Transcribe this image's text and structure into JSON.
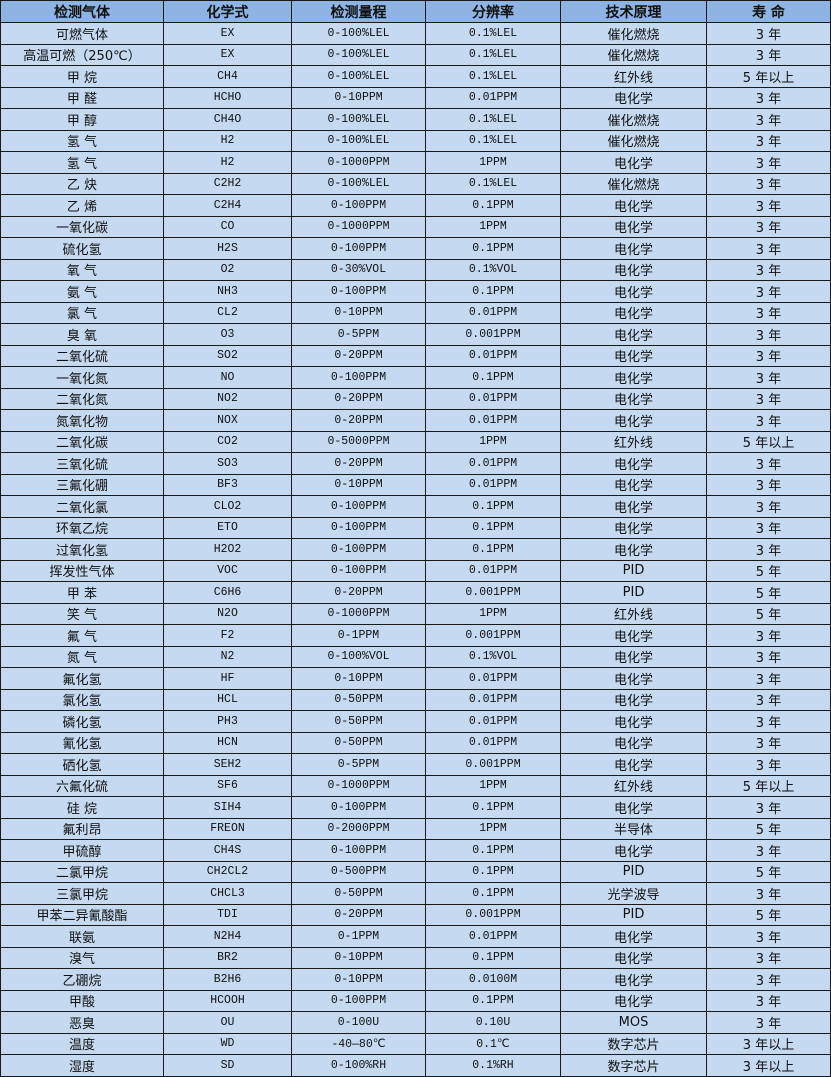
{
  "table": {
    "headers": [
      "检测气体",
      "化学式",
      "检测量程",
      "分辨率",
      "技术原理",
      "寿 命"
    ],
    "rows": [
      [
        "可燃气体",
        "EX",
        "0-100%LEL",
        "0.1%LEL",
        "催化燃烧",
        "3 年"
      ],
      [
        "高温可燃（250℃）",
        "EX",
        "0-100%LEL",
        "0.1%LEL",
        "催化燃烧",
        "3 年"
      ],
      [
        "甲 烷",
        "CH4",
        "0-100%LEL",
        "0.1%LEL",
        "红外线",
        "5 年以上"
      ],
      [
        "甲 醛",
        "HCHO",
        "0-10PPM",
        "0.01PPM",
        "电化学",
        "3 年"
      ],
      [
        "甲 醇",
        "CH4O",
        "0-100%LEL",
        "0.1%LEL",
        "催化燃烧",
        "3 年"
      ],
      [
        "氢 气",
        "H2",
        "0-100%LEL",
        "0.1%LEL",
        "催化燃烧",
        "3 年"
      ],
      [
        "氢 气",
        "H2",
        "0-1000PPM",
        "1PPM",
        "电化学",
        "3 年"
      ],
      [
        "乙 炔",
        "C2H2",
        "0-100%LEL",
        "0.1%LEL",
        "催化燃烧",
        "3 年"
      ],
      [
        "乙 烯",
        "C2H4",
        "0-100PPM",
        "0.1PPM",
        "电化学",
        "3 年"
      ],
      [
        "一氧化碳",
        "CO",
        "0-1000PPM",
        "1PPM",
        "电化学",
        "3 年"
      ],
      [
        "硫化氢",
        "H2S",
        "0-100PPM",
        "0.1PPM",
        "电化学",
        "3 年"
      ],
      [
        "氧 气",
        "O2",
        "0-30%VOL",
        "0.1%VOL",
        "电化学",
        "3 年"
      ],
      [
        "氨 气",
        "NH3",
        "0-100PPM",
        "0.1PPM",
        "电化学",
        "3 年"
      ],
      [
        "氯 气",
        "CL2",
        "0-10PPM",
        "0.01PPM",
        "电化学",
        "3 年"
      ],
      [
        "臭 氧",
        "O3",
        "0-5PPM",
        "0.001PPM",
        "电化学",
        "3 年"
      ],
      [
        "二氧化硫",
        "SO2",
        "0-20PPM",
        "0.01PPM",
        "电化学",
        "3 年"
      ],
      [
        "一氧化氮",
        "NO",
        "0-100PPM",
        "0.1PPM",
        "电化学",
        "3 年"
      ],
      [
        "二氧化氮",
        "NO2",
        "0-20PPM",
        "0.01PPM",
        "电化学",
        "3 年"
      ],
      [
        "氮氧化物",
        "NOX",
        "0-20PPM",
        "0.01PPM",
        "电化学",
        "3 年"
      ],
      [
        "二氧化碳",
        "CO2",
        "0-5000PPM",
        "1PPM",
        "红外线",
        "5 年以上"
      ],
      [
        "三氧化硫",
        "SO3",
        "0-20PPM",
        "0.01PPM",
        "电化学",
        "3 年"
      ],
      [
        "三氟化硼",
        "BF3",
        "0-10PPM",
        "0.01PPM",
        "电化学",
        "3 年"
      ],
      [
        "二氧化氯",
        "CLO2",
        "0-100PPM",
        "0.1PPM",
        "电化学",
        "3 年"
      ],
      [
        "环氧乙烷",
        "ETO",
        "0-100PPM",
        "0.1PPM",
        "电化学",
        "3 年"
      ],
      [
        "过氧化氢",
        "H2O2",
        "0-100PPM",
        "0.1PPM",
        "电化学",
        "3 年"
      ],
      [
        "挥发性气体",
        "VOC",
        "0-100PPM",
        "0.01PPM",
        "PID",
        "5 年"
      ],
      [
        "甲 苯",
        "C6H6",
        "0-20PPM",
        "0.001PPM",
        "PID",
        "5 年"
      ],
      [
        "笑 气",
        "N2O",
        "0-1000PPM",
        "1PPM",
        "红外线",
        "5 年"
      ],
      [
        "氟 气",
        "F2",
        "0-1PPM",
        "0.001PPM",
        "电化学",
        "3 年"
      ],
      [
        "氮 气",
        "N2",
        "0-100%VOL",
        "0.1%VOL",
        "电化学",
        "3 年"
      ],
      [
        "氟化氢",
        "HF",
        "0-10PPM",
        "0.01PPM",
        "电化学",
        "3 年"
      ],
      [
        "氯化氢",
        "HCL",
        "0-50PPM",
        "0.01PPM",
        "电化学",
        "3 年"
      ],
      [
        "磷化氢",
        "PH3",
        "0-50PPM",
        "0.01PPM",
        "电化学",
        "3 年"
      ],
      [
        "氰化氢",
        "HCN",
        "0-50PPM",
        "0.01PPM",
        "电化学",
        "3 年"
      ],
      [
        "硒化氢",
        "SEH2",
        "0-5PPM",
        "0.001PPM",
        "电化学",
        "3 年"
      ],
      [
        "六氟化硫",
        "SF6",
        "0-1000PPM",
        "1PPM",
        "红外线",
        "5 年以上"
      ],
      [
        "硅 烷",
        "SIH4",
        "0-100PPM",
        "0.1PPM",
        "电化学",
        "3 年"
      ],
      [
        "氟利昂",
        "FREON",
        "0-2000PPM",
        "1PPM",
        "半导体",
        "5 年"
      ],
      [
        "甲硫醇",
        "CH4S",
        "0-100PPM",
        "0.1PPM",
        "电化学",
        "3 年"
      ],
      [
        "二氯甲烷",
        "CH2CL2",
        "0-500PPM",
        "0.1PPM",
        "PID",
        "5 年"
      ],
      [
        "三氯甲烷",
        "CHCL3",
        "0-50PPM",
        "0.1PPM",
        "光学波导",
        "3 年"
      ],
      [
        "甲苯二异氰酸酯",
        "TDI",
        "0-20PPM",
        "0.001PPM",
        "PID",
        "5 年"
      ],
      [
        "联氨",
        "N2H4",
        "0-1PPM",
        "0.01PPM",
        "电化学",
        "3 年"
      ],
      [
        "溴气",
        "BR2",
        "0-10PPM",
        "0.1PPM",
        "电化学",
        "3 年"
      ],
      [
        "乙硼烷",
        "B2H6",
        "0-10PPM",
        "0.0100M",
        "电化学",
        "3 年"
      ],
      [
        "甲酸",
        "HCOOH",
        "0-100PPM",
        "0.1PPM",
        "电化学",
        "3 年"
      ],
      [
        "恶臭",
        "OU",
        "0-100U",
        "0.10U",
        "MOS",
        "3 年"
      ],
      [
        "温度",
        "WD",
        "-40—80℃",
        "0.1℃",
        "数字芯片",
        "3 年以上"
      ],
      [
        "湿度",
        "SD",
        "0-100%RH",
        "0.1%RH",
        "数字芯片",
        "3 年以上"
      ]
    ]
  },
  "colors": {
    "header_bg": "#8db4e2",
    "row_bg": "#c5d9f1",
    "border": "#1a1a1a"
  }
}
